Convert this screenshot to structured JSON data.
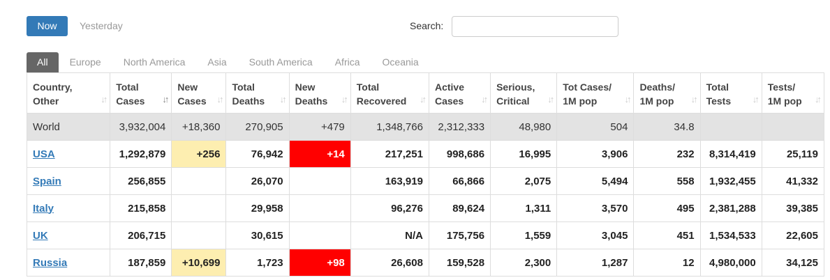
{
  "controls": {
    "now_label": "Now",
    "yesterday_label": "Yesterday",
    "search_label": "Search:",
    "search_value": ""
  },
  "tabs": [
    "All",
    "Europe",
    "North America",
    "Asia",
    "South America",
    "Africa",
    "Oceania"
  ],
  "columns": [
    {
      "line1": "Country,",
      "line2": "Other"
    },
    {
      "line1": "Total",
      "line2": "Cases"
    },
    {
      "line1": "New",
      "line2": "Cases"
    },
    {
      "line1": "Total",
      "line2": "Deaths"
    },
    {
      "line1": "New",
      "line2": "Deaths"
    },
    {
      "line1": "Total",
      "line2": "Recovered"
    },
    {
      "line1": "Active",
      "line2": "Cases"
    },
    {
      "line1": "Serious,",
      "line2": "Critical"
    },
    {
      "line1": "Tot Cases/",
      "line2": "1M pop"
    },
    {
      "line1": "Deaths/",
      "line2": "1M pop"
    },
    {
      "line1": "Total",
      "line2": "Tests"
    },
    {
      "line1": "Tests/",
      "line2": "1M pop"
    }
  ],
  "rows": [
    {
      "country": "World",
      "link": false,
      "cells": [
        "3,932,004",
        "+18,360",
        "270,905",
        "+479",
        "1,348,766",
        "2,312,333",
        "48,980",
        "504",
        "34.8",
        "",
        ""
      ]
    },
    {
      "country": "USA",
      "link": true,
      "cells": [
        "1,292,879",
        "+256",
        "76,942",
        "+14",
        "217,251",
        "998,686",
        "16,995",
        "3,906",
        "232",
        "8,314,419",
        "25,119"
      ]
    },
    {
      "country": "Spain",
      "link": true,
      "cells": [
        "256,855",
        "",
        "26,070",
        "",
        "163,919",
        "66,866",
        "2,075",
        "5,494",
        "558",
        "1,932,455",
        "41,332"
      ]
    },
    {
      "country": "Italy",
      "link": true,
      "cells": [
        "215,858",
        "",
        "29,958",
        "",
        "96,276",
        "89,624",
        "1,311",
        "3,570",
        "495",
        "2,381,288",
        "39,385"
      ]
    },
    {
      "country": "UK",
      "link": true,
      "cells": [
        "206,715",
        "",
        "30,615",
        "",
        "N/A",
        "175,756",
        "1,559",
        "3,045",
        "451",
        "1,534,533",
        "22,605"
      ]
    },
    {
      "country": "Russia",
      "link": true,
      "cells": [
        "187,859",
        "+10,699",
        "1,723",
        "+98",
        "26,608",
        "159,528",
        "2,300",
        "1,287",
        "12",
        "4,980,000",
        "34,125"
      ]
    }
  ]
}
